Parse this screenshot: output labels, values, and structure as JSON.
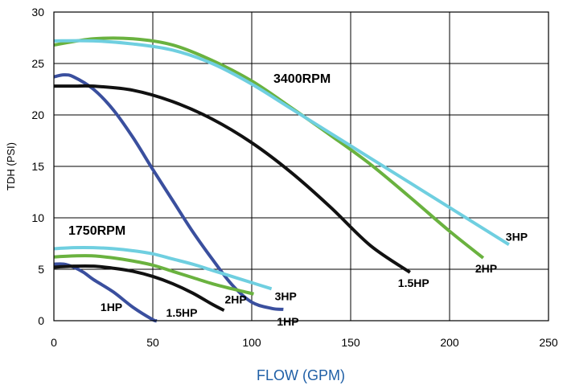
{
  "chart_data": {
    "type": "line",
    "xlabel": "FLOW (GPM)",
    "ylabel": "TDH (PSI)",
    "xlim": [
      0,
      250
    ],
    "ylim": [
      0,
      30
    ],
    "xticks": [
      0,
      50,
      100,
      150,
      200,
      250
    ],
    "yticks": [
      0,
      5,
      10,
      15,
      20,
      25,
      30
    ],
    "grid": true,
    "colors": {
      "1HP": "#3a4f9e",
      "1.5HP": "#111111",
      "2HP": "#6ab23f",
      "3HP": "#6fcfe0"
    },
    "groups": [
      {
        "label": "3400RPM",
        "series": [
          {
            "name": "1HP",
            "color_key": "1HP",
            "label": "1HP",
            "x": [
              0,
              5,
              10,
              20,
              30,
              40,
              50,
              60,
              70,
              80,
              90,
              100,
              110,
              116
            ],
            "y": [
              23.7,
              23.9,
              23.7,
              22.5,
              20.5,
              17.8,
              14.7,
              11.7,
              8.7,
              6.0,
              3.5,
              1.8,
              1.2,
              1.1
            ]
          },
          {
            "name": "1.5HP",
            "color_key": "1.5HP",
            "label": "1.5HP",
            "x": [
              0,
              10,
              20,
              40,
              60,
              80,
              100,
              120,
              140,
              160,
              180
            ],
            "y": [
              22.8,
              22.8,
              22.8,
              22.4,
              21.3,
              19.6,
              17.3,
              14.4,
              11.0,
              7.3,
              4.7
            ]
          },
          {
            "name": "2HP",
            "color_key": "2HP",
            "label": "2HP",
            "x": [
              0,
              20,
              40,
              60,
              80,
              100,
              120,
              140,
              160,
              180,
              200,
              217
            ],
            "y": [
              26.8,
              27.4,
              27.4,
              26.8,
              25.3,
              23.3,
              20.7,
              18.0,
              15.2,
              12.0,
              8.7,
              6.1
            ]
          },
          {
            "name": "3HP",
            "color_key": "3HP",
            "label": "3HP",
            "x": [
              0,
              20,
              40,
              60,
              80,
              100,
              120,
              140,
              160,
              180,
              200,
              230
            ],
            "y": [
              27.2,
              27.2,
              26.9,
              26.3,
              25.0,
              23.0,
              20.6,
              18.2,
              15.8,
              13.4,
              11.0,
              7.4
            ]
          }
        ]
      },
      {
        "label": "1750RPM",
        "series": [
          {
            "name": "1HP",
            "color_key": "1HP",
            "label": "1HP",
            "x": [
              0,
              5,
              10,
              15,
              20,
              30,
              40,
              50,
              52
            ],
            "y": [
              5.5,
              5.5,
              5.2,
              4.7,
              4.0,
              2.8,
              1.3,
              0.1,
              0.0
            ]
          },
          {
            "name": "1.5HP",
            "color_key": "1.5HP",
            "label": "1.5HP",
            "x": [
              0,
              10,
              20,
              30,
              40,
              50,
              60,
              70,
              80,
              86
            ],
            "y": [
              5.2,
              5.3,
              5.3,
              5.1,
              4.8,
              4.3,
              3.6,
              2.7,
              1.6,
              1.0
            ]
          },
          {
            "name": "2HP",
            "color_key": "2HP",
            "label": "2HP",
            "x": [
              0,
              10,
              20,
              30,
              40,
              50,
              60,
              70,
              80,
              90,
              101
            ],
            "y": [
              6.2,
              6.3,
              6.3,
              6.1,
              5.8,
              5.4,
              4.8,
              4.2,
              3.6,
              3.1,
              2.6
            ]
          },
          {
            "name": "3HP",
            "color_key": "3HP",
            "label": "3HP",
            "x": [
              0,
              10,
              20,
              30,
              40,
              50,
              60,
              70,
              80,
              90,
              100,
              110
            ],
            "y": [
              7.0,
              7.1,
              7.1,
              7.0,
              6.8,
              6.5,
              6.0,
              5.5,
              4.9,
              4.3,
              3.7,
              3.1
            ]
          }
        ]
      }
    ]
  }
}
